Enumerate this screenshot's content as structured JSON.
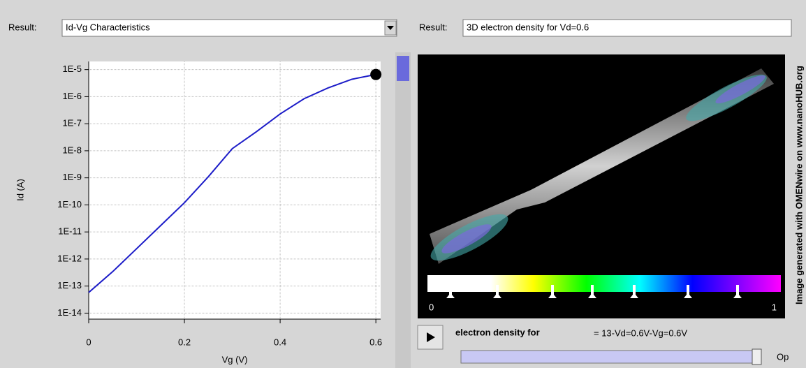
{
  "left_panel": {
    "result_label": "Result:",
    "selection": "Id-Vg Characteristics"
  },
  "chart_data": {
    "type": "line",
    "ylabel": "Id (A)",
    "xlabel": "Vg (V)",
    "x": [
      0,
      0.05,
      0.1,
      0.15,
      0.2,
      0.25,
      0.3,
      0.35,
      0.4,
      0.45,
      0.5,
      0.55,
      0.6
    ],
    "series": [
      {
        "color": "#1c1cc8",
        "values": [
          5.8e-14,
          3.4e-13,
          2.4e-12,
          1.7e-11,
          1.2e-10,
          1.1e-09,
          1.2e-08,
          5e-08,
          2.3e-07,
          8.4e-07,
          2.1e-06,
          4.4e-06,
          6.6e-06
        ]
      }
    ],
    "xlim": [
      0,
      0.61
    ],
    "xticks": [
      0,
      0.2,
      0.4,
      0.6
    ],
    "ylim": [
      6e-15,
      2e-05
    ],
    "log_y": true,
    "grid": true,
    "yticks": [
      {
        "value": 1e-14,
        "label": "1E-14"
      },
      {
        "value": 1e-13,
        "label": "1E-13"
      },
      {
        "value": 1e-12,
        "label": "1E-12"
      },
      {
        "value": 1e-11,
        "label": "1E-11"
      },
      {
        "value": 1e-10,
        "label": "1E-10"
      },
      {
        "value": 1e-09,
        "label": "1E-9"
      },
      {
        "value": 1e-08,
        "label": "1E-8"
      },
      {
        "value": 1e-07,
        "label": "1E-7"
      },
      {
        "value": 1e-06,
        "label": "1E-6"
      },
      {
        "value": 1e-05,
        "label": "1E-5"
      }
    ]
  },
  "right_panel": {
    "result_label": "Result:",
    "selection": "3D electron density for Vd=0.6",
    "colorbar": {
      "min": 0,
      "max": 1
    },
    "caption": "electron density for",
    "frame": "= 13-Vd=0.6V-Vg=0.6V",
    "slider_label": "Op"
  },
  "watermark": "Image generated with OMENwire on www.nanoHUB.org"
}
